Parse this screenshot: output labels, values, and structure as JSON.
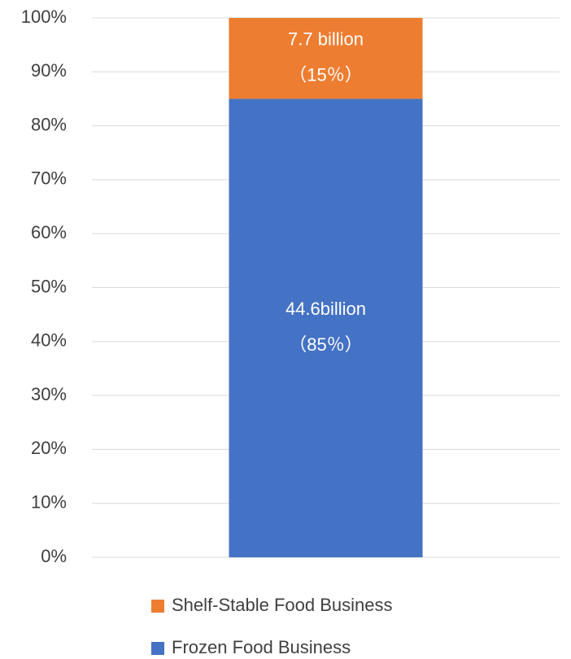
{
  "chart_data": {
    "type": "stacked_bar",
    "categories": [
      null
    ],
    "series": [
      {
        "name": "Frozen Food Business",
        "color": "#4472c4",
        "values": [
          85
        ],
        "value_labels": [
          "（85％）"
        ],
        "amount_labels": [
          "44.6billion"
        ]
      },
      {
        "name": "Shelf-Stable Food Business",
        "color": "#ed7d31",
        "values": [
          15
        ],
        "value_labels": [
          "（15％）"
        ],
        "amount_labels": [
          "7.7 billion"
        ]
      }
    ],
    "ylim": [
      0,
      100
    ],
    "yticks": [
      {
        "value": 0,
        "label": "0%"
      },
      {
        "value": 10,
        "label": "10%"
      },
      {
        "value": 20,
        "label": "20%"
      },
      {
        "value": 30,
        "label": "30%"
      },
      {
        "value": 40,
        "label": "40%"
      },
      {
        "value": 50,
        "label": "50%"
      },
      {
        "value": 60,
        "label": "60%"
      },
      {
        "value": 70,
        "label": "70%"
      },
      {
        "value": 80,
        "label": "80%"
      },
      {
        "value": 90,
        "label": "90%"
      },
      {
        "value": 100,
        "label": "100%"
      }
    ],
    "grid": true,
    "legend": "bottom"
  }
}
